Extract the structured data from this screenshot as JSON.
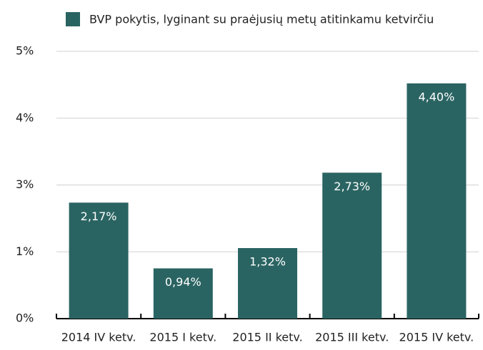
{
  "chart_data": {
    "type": "bar",
    "categories": [
      "2014 IV ketv.",
      "2015 I ketv.",
      "2015 II ketv.",
      "2015 III ketv.",
      "2015 IV ketv."
    ],
    "series": [
      {
        "name": "BVP pokytis, lyginant su praėjusių metų atitinkamu ketvirčiu",
        "color": "#2a6462",
        "values": [
          2.17,
          0.94,
          1.32,
          2.73,
          4.4
        ],
        "value_labels": [
          "2,17%",
          "0,94%",
          "1,32%",
          "2,73%",
          "4,40%"
        ]
      }
    ],
    "ylim": [
      0,
      5
    ],
    "yticks": [
      {
        "value": 0,
        "label": "0%"
      },
      {
        "value": 1.25,
        "label": "1%"
      },
      {
        "value": 2.5,
        "label": "3%"
      },
      {
        "value": 3.75,
        "label": "4%"
      },
      {
        "value": 5,
        "label": "5%"
      }
    ],
    "grid": true,
    "legend": "top"
  }
}
